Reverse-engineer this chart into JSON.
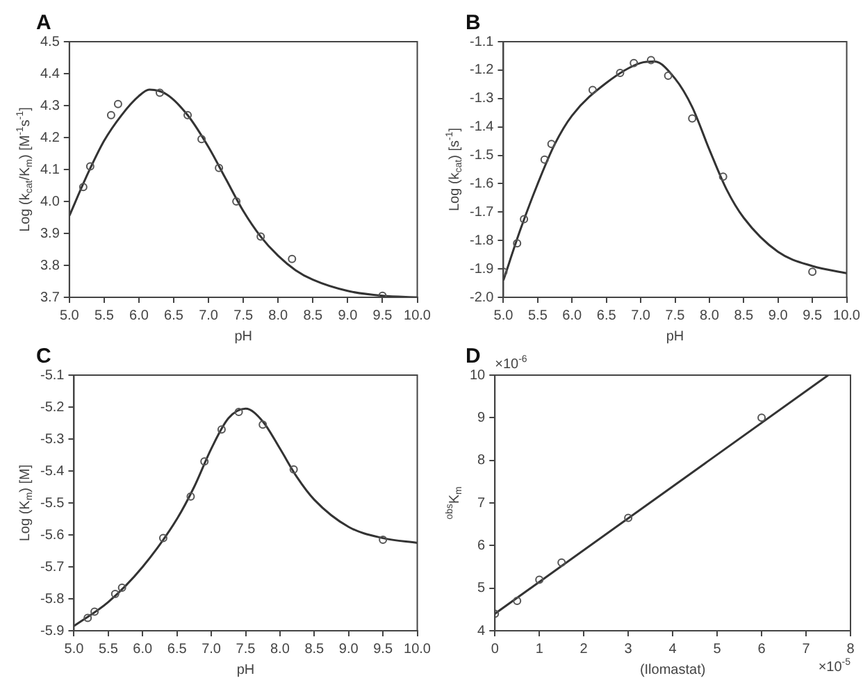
{
  "chart_data": [
    {
      "type": "scatter",
      "title": "A",
      "xlabel": "pH",
      "ylabel": "Log (k$_{cat}$/K$_{m}$) [M$^{-1}$s$^{-1}$]",
      "xlim": [
        5,
        10
      ],
      "ylim": [
        3.7,
        4.5
      ],
      "xticks": [
        {
          "value": 5,
          "label": "5.0"
        },
        5.5,
        {
          "value": 6,
          "label": "6.0"
        },
        6.5,
        {
          "value": 7,
          "label": "7.0"
        },
        7.5,
        {
          "value": 8,
          "label": "8.0"
        },
        8.5,
        {
          "value": 9,
          "label": "9.0"
        },
        9.5,
        {
          "value": 10,
          "label": "10.0"
        }
      ],
      "yticks": [
        3.7,
        3.8,
        3.9,
        {
          "value": 4,
          "label": "4.0"
        },
        4.1,
        4.2,
        4.3,
        4.4,
        4.5
      ],
      "series": [
        {
          "marker": "circle",
          "color": "#555555",
          "x": [
            5.2,
            5.3,
            5.6,
            5.7,
            6.3,
            6.7,
            6.9,
            7.15,
            7.4,
            7.75,
            8.2,
            9.5
          ],
          "values": [
            4.045,
            4.11,
            4.27,
            4.305,
            4.34,
            4.27,
            4.195,
            4.105,
            4.0,
            3.89,
            3.82,
            3.705
          ]
        },
        {
          "type": "line",
          "color": "#333333",
          "x": [
            5.0,
            5.25,
            5.5,
            5.75,
            6.0,
            6.15,
            6.4,
            6.7,
            7.0,
            7.25,
            7.5,
            7.75,
            8.0,
            8.25,
            8.5,
            9.0,
            9.5,
            10.0
          ],
          "values": [
            3.955,
            4.08,
            4.19,
            4.27,
            4.33,
            4.35,
            4.335,
            4.27,
            4.17,
            4.07,
            3.97,
            3.89,
            3.83,
            3.785,
            3.755,
            3.72,
            3.705,
            3.7
          ]
        }
      ]
    },
    {
      "type": "scatter",
      "title": "B",
      "xlabel": "pH",
      "ylabel": "Log (k$_{cat}$) [s$^{-1}$]",
      "xlim": [
        5,
        10
      ],
      "ylim": [
        -2.0,
        -1.1
      ],
      "xticks": [
        {
          "value": 5,
          "label": "5.0"
        },
        5.5,
        {
          "value": 6,
          "label": "6.0"
        },
        6.5,
        {
          "value": 7,
          "label": "7.0"
        },
        7.5,
        {
          "value": 8,
          "label": "8.0"
        },
        8.5,
        {
          "value": 9,
          "label": "9.0"
        },
        9.5,
        {
          "value": 10,
          "label": "10.0"
        }
      ],
      "yticks": [
        {
          "value": -2,
          "label": "-2.0"
        },
        -1.9,
        -1.8,
        -1.7,
        -1.6,
        -1.5,
        -1.4,
        -1.3,
        -1.2,
        -1.1
      ],
      "series": [
        {
          "marker": "circle",
          "color": "#555555",
          "x": [
            5.0,
            5.2,
            5.3,
            5.6,
            5.7,
            6.3,
            6.7,
            6.9,
            7.15,
            7.4,
            7.75,
            8.2,
            9.5
          ],
          "values": [
            -1.91,
            -1.81,
            -1.725,
            -1.515,
            -1.46,
            -1.27,
            -1.21,
            -1.175,
            -1.165,
            -1.22,
            -1.37,
            -1.575,
            -1.91
          ]
        },
        {
          "type": "line",
          "color": "#333333",
          "x": [
            5.0,
            5.25,
            5.5,
            5.75,
            6.0,
            6.5,
            7.0,
            7.2,
            7.5,
            7.75,
            8.0,
            8.25,
            8.5,
            9.0,
            9.5,
            10.0
          ],
          "values": [
            -1.94,
            -1.76,
            -1.6,
            -1.46,
            -1.36,
            -1.245,
            -1.175,
            -1.17,
            -1.23,
            -1.33,
            -1.48,
            -1.62,
            -1.72,
            -1.84,
            -1.89,
            -1.915
          ]
        }
      ]
    },
    {
      "type": "scatter",
      "title": "C",
      "xlabel": "pH",
      "ylabel": "Log (K$_{m}$) [M]",
      "xlim": [
        5,
        10
      ],
      "ylim": [
        -5.9,
        -5.1
      ],
      "xticks": [
        {
          "value": 5,
          "label": "5.0"
        },
        5.5,
        {
          "value": 6,
          "label": "6.0"
        },
        6.5,
        {
          "value": 7,
          "label": "7.0"
        },
        7.5,
        {
          "value": 8,
          "label": "8.0"
        },
        8.5,
        {
          "value": 9,
          "label": "9.0"
        },
        9.5,
        {
          "value": 10,
          "label": "10.0"
        }
      ],
      "yticks": [
        -5.9,
        -5.8,
        -5.7,
        -5.6,
        -5.5,
        -5.4,
        -5.3,
        -5.2,
        -5.1
      ],
      "series": [
        {
          "marker": "circle",
          "color": "#555555",
          "x": [
            5.2,
            5.3,
            5.6,
            5.7,
            6.3,
            6.7,
            6.9,
            7.15,
            7.4,
            7.75,
            8.2,
            9.5
          ],
          "values": [
            -5.86,
            -5.84,
            -5.785,
            -5.765,
            -5.61,
            -5.48,
            -5.37,
            -5.27,
            -5.215,
            -5.255,
            -5.395,
            -5.615
          ]
        },
        {
          "type": "line",
          "color": "#333333",
          "x": [
            5.0,
            5.5,
            6.0,
            6.5,
            6.75,
            7.0,
            7.25,
            7.5,
            7.75,
            8.0,
            8.25,
            8.5,
            9.0,
            9.5,
            10.0
          ],
          "values": [
            -5.885,
            -5.81,
            -5.7,
            -5.55,
            -5.45,
            -5.33,
            -5.235,
            -5.205,
            -5.245,
            -5.33,
            -5.42,
            -5.49,
            -5.575,
            -5.61,
            -5.625
          ]
        }
      ]
    },
    {
      "type": "scatter",
      "title": "D",
      "xlabel": "(Ilomastat)",
      "ylabel": "$^{obs}$K$_{m}$",
      "xlim": [
        0,
        8
      ],
      "ylim": [
        4,
        10
      ],
      "xticks": [
        0,
        1,
        2,
        3,
        4,
        5,
        6,
        7,
        8
      ],
      "yticks": [
        4,
        5,
        6,
        7,
        8,
        9,
        10
      ],
      "annotations": [
        "×10$^{-6}$",
        "×10$^{-5}$"
      ],
      "series": [
        {
          "marker": "circle",
          "color": "#555555",
          "x": [
            0,
            0.5,
            1,
            1.5,
            3,
            6
          ],
          "values": [
            4.4,
            4.7,
            5.2,
            5.6,
            6.65,
            9.0
          ]
        },
        {
          "type": "line",
          "color": "#333333",
          "x": [
            0,
            7.5
          ],
          "values": [
            4.4,
            10
          ]
        }
      ]
    }
  ]
}
